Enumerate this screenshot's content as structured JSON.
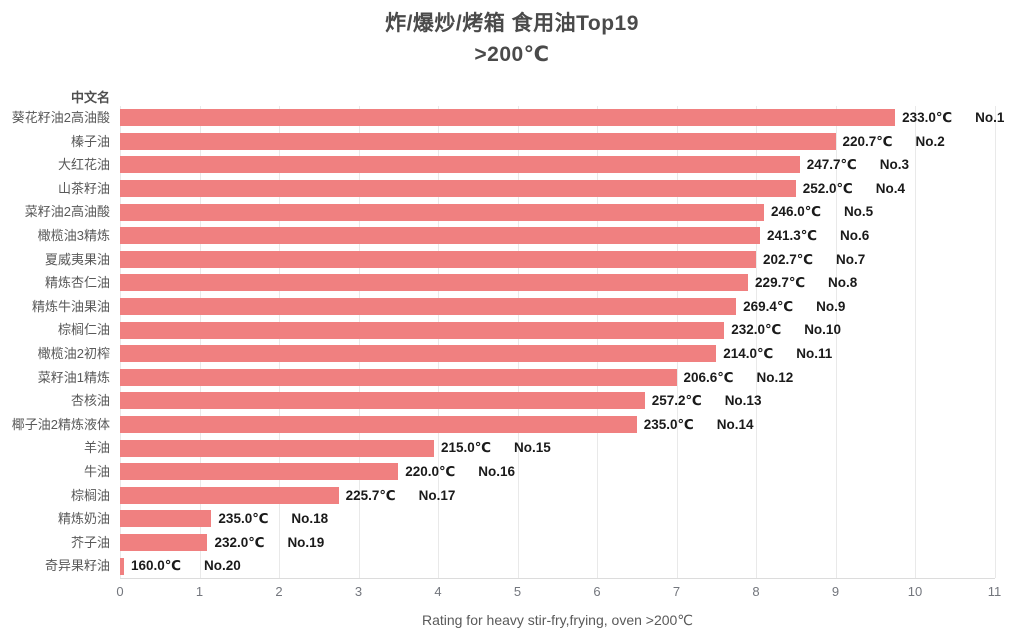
{
  "title": {
    "line1": "炸/爆炒/烤箱 食用油Top19",
    "line2": ">200℃"
  },
  "colors": {
    "bar": "#f08080",
    "title_text": "#4a4a4a",
    "category_text": "#595959",
    "value_text": "#1a1a1a",
    "tick_text": "#73767d",
    "gridline": "#e9e9e9"
  },
  "chart_data": {
    "type": "bar",
    "orientation": "horizontal",
    "title": "炸/爆炒/烤箱 食用油Top19",
    "subtitle": ">200℃",
    "xlabel": "Rating for heavy stir-fry,frying, oven >200℃",
    "ylabel": "中文名",
    "xlim": [
      0,
      11
    ],
    "x_ticks": [
      0,
      1,
      2,
      3,
      4,
      5,
      6,
      7,
      8,
      9,
      10,
      11
    ],
    "grid": true,
    "legend": false,
    "rows": [
      {
        "name": "葵花籽油2高油酸",
        "value": 9.75,
        "temp": "233.0℃",
        "rank": "No.1"
      },
      {
        "name": "榛子油",
        "value": 9.0,
        "temp": "220.7℃",
        "rank": "No.2"
      },
      {
        "name": "大红花油",
        "value": 8.55,
        "temp": "247.7℃",
        "rank": "No.3"
      },
      {
        "name": "山茶籽油",
        "value": 8.5,
        "temp": "252.0℃",
        "rank": "No.4"
      },
      {
        "name": "菜籽油2高油酸",
        "value": 8.1,
        "temp": "246.0℃",
        "rank": "No.5"
      },
      {
        "name": "橄榄油3精炼",
        "value": 8.05,
        "temp": "241.3℃",
        "rank": "No.6"
      },
      {
        "name": "夏威夷果油",
        "value": 8.0,
        "temp": "202.7℃",
        "rank": "No.7"
      },
      {
        "name": "精炼杏仁油",
        "value": 7.9,
        "temp": "229.7℃",
        "rank": "No.8"
      },
      {
        "name": "精炼牛油果油",
        "value": 7.75,
        "temp": "269.4℃",
        "rank": "No.9"
      },
      {
        "name": "棕榈仁油",
        "value": 7.6,
        "temp": "232.0℃",
        "rank": "No.10"
      },
      {
        "name": "橄榄油2初榨",
        "value": 7.5,
        "temp": "214.0℃",
        "rank": "No.11"
      },
      {
        "name": "菜籽油1精炼",
        "value": 7.0,
        "temp": "206.6℃",
        "rank": "No.12"
      },
      {
        "name": "杏核油",
        "value": 6.6,
        "temp": "257.2℃",
        "rank": "No.13"
      },
      {
        "name": "椰子油2精炼液体",
        "value": 6.5,
        "temp": "235.0℃",
        "rank": "No.14"
      },
      {
        "name": "羊油",
        "value": 3.95,
        "temp": "215.0℃",
        "rank": "No.15"
      },
      {
        "name": "牛油",
        "value": 3.5,
        "temp": "220.0℃",
        "rank": "No.16"
      },
      {
        "name": "棕榈油",
        "value": 2.75,
        "temp": "225.7℃",
        "rank": "No.17"
      },
      {
        "name": "精炼奶油",
        "value": 1.15,
        "temp": "235.0℃",
        "rank": "No.18"
      },
      {
        "name": "芥子油",
        "value": 1.1,
        "temp": "232.0℃",
        "rank": "No.19"
      },
      {
        "name": "奇异果籽油",
        "value": 0.05,
        "temp": "160.0℃",
        "rank": "No.20"
      }
    ]
  }
}
